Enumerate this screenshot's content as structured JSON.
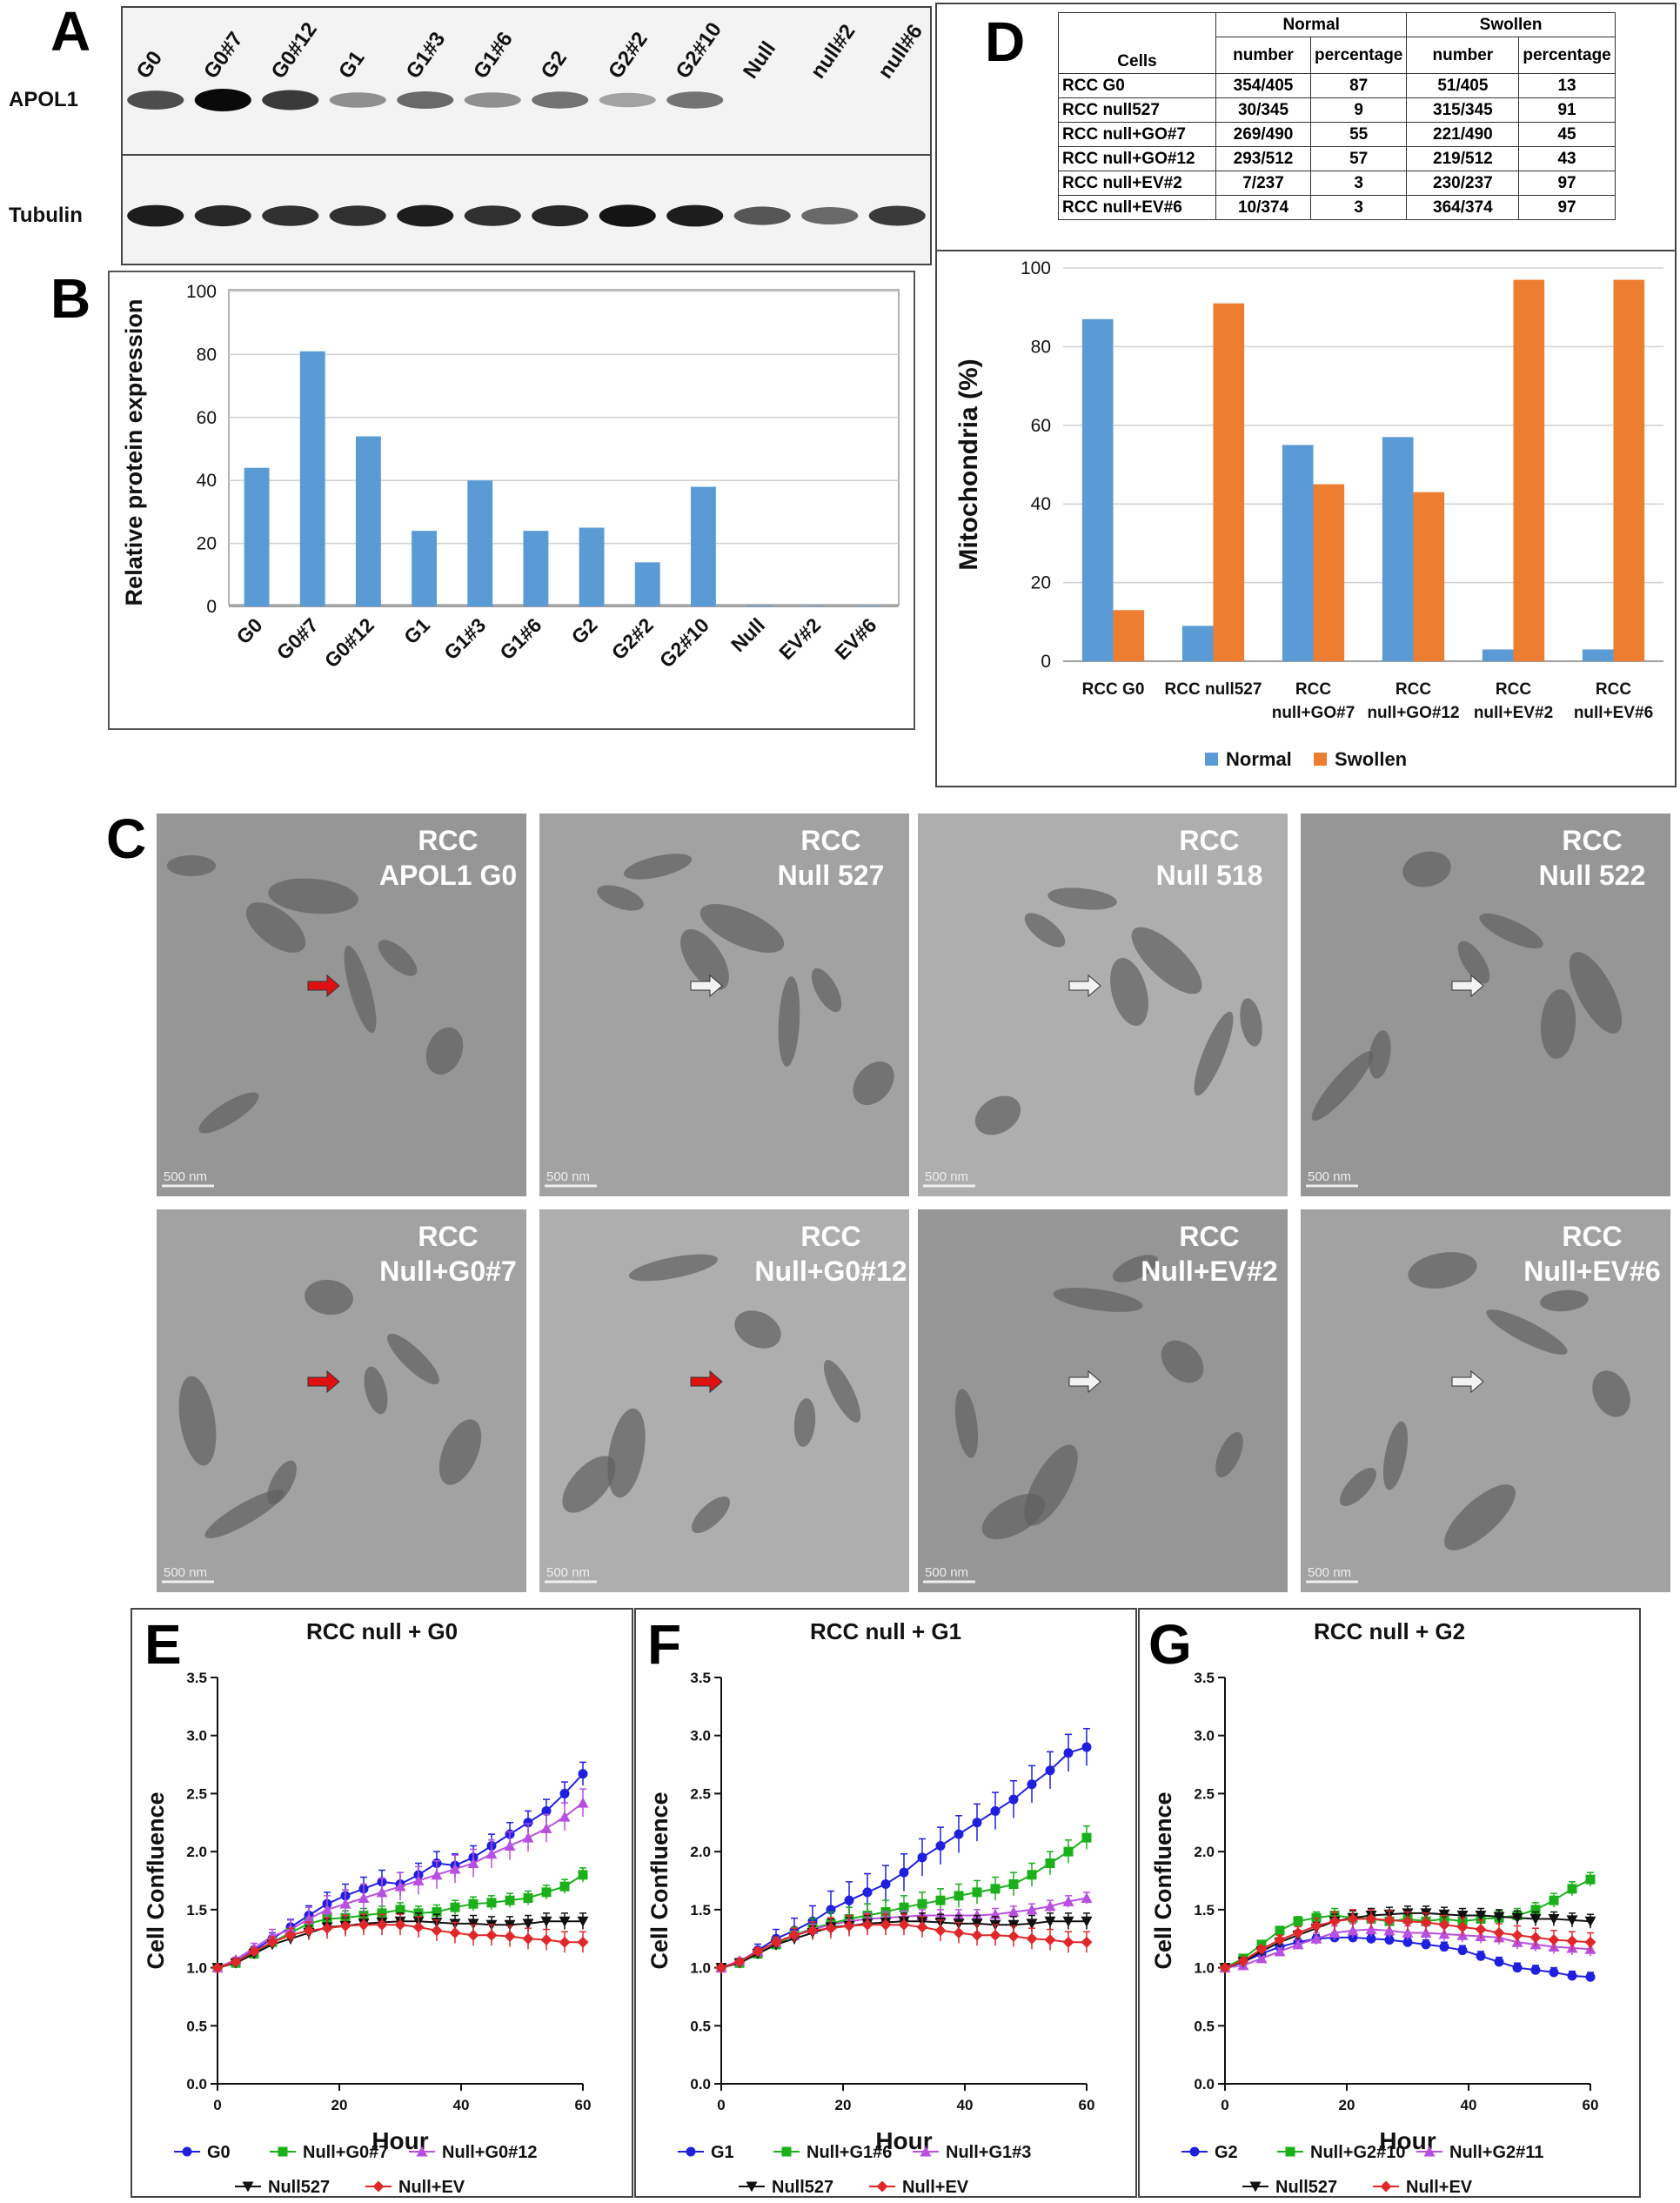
{
  "panels": {
    "a": "A",
    "b": "B",
    "c": "C",
    "d": "D",
    "e": "E",
    "f": "F",
    "g": "G"
  },
  "blot": {
    "lanes": [
      "G0",
      "G0#7",
      "G0#12",
      "G1",
      "G1#3",
      "G1#6",
      "G2",
      "G2#2",
      "G2#10",
      "Null",
      "null#2",
      "null#6"
    ],
    "rows": [
      {
        "name": "APOL1",
        "intensity": [
          0.65,
          1.0,
          0.75,
          0.3,
          0.5,
          0.3,
          0.45,
          0.2,
          0.45,
          0,
          0,
          0
        ]
      },
      {
        "name": "Tubulin",
        "intensity": [
          0.9,
          0.85,
          0.8,
          0.8,
          0.9,
          0.8,
          0.85,
          0.95,
          0.9,
          0.6,
          0.5,
          0.75
        ]
      }
    ]
  },
  "em": {
    "scale_bar": "500 nm",
    "images": [
      {
        "label1": "RCC",
        "label2": "APOL1 G0",
        "arrow": "red"
      },
      {
        "label1": "RCC",
        "label2": "Null 527",
        "arrow": "white"
      },
      {
        "label1": "RCC",
        "label2": "Null 518",
        "arrow": "white"
      },
      {
        "label1": "RCC",
        "label2": "Null 522",
        "arrow": "white"
      },
      {
        "label1": "RCC",
        "label2": "Null+G0#7",
        "arrow": "red"
      },
      {
        "label1": "RCC",
        "label2": "Null+G0#12",
        "arrow": "red"
      },
      {
        "label1": "RCC",
        "label2": "Null+EV#2",
        "arrow": "white"
      },
      {
        "label1": "RCC",
        "label2": "Null+EV#6",
        "arrow": "white"
      }
    ]
  },
  "table": {
    "cells_header": "Cells",
    "group_normal": "Normal",
    "group_swollen": "Swollen",
    "col_number": "number",
    "col_percentage": "percentage",
    "rows": [
      {
        "cells": "RCC G0",
        "n_num": "354/405",
        "n_pct": "87",
        "s_num": "51/405",
        "s_pct": "13"
      },
      {
        "cells": "RCC null527",
        "n_num": "30/345",
        "n_pct": "9",
        "s_num": "315/345",
        "s_pct": "91"
      },
      {
        "cells": "RCC null+GO#7",
        "n_num": "269/490",
        "n_pct": "55",
        "s_num": "221/490",
        "s_pct": "45"
      },
      {
        "cells": "RCC null+GO#12",
        "n_num": "293/512",
        "n_pct": "57",
        "s_num": "219/512",
        "s_pct": "43"
      },
      {
        "cells": "RCC null+EV#2",
        "n_num": "7/237",
        "n_pct": "3",
        "s_num": "230/237",
        "s_pct": "97"
      },
      {
        "cells": "RCC null+EV#6",
        "n_num": "10/374",
        "n_pct": "3",
        "s_num": "364/374",
        "s_pct": "97"
      }
    ]
  },
  "chart_data": [
    {
      "id": "B",
      "type": "bar",
      "title": "",
      "ylabel": "Relative protein expression",
      "xlabel": "",
      "categories": [
        "G0",
        "G0#7",
        "G0#12",
        "G1",
        "G1#3",
        "G1#6",
        "G2",
        "G2#2",
        "G2#10",
        "Null",
        "EV#2",
        "EV#6"
      ],
      "values": [
        44,
        81,
        54,
        24,
        40,
        24,
        25,
        14,
        38,
        0.3,
        0.2,
        0.2
      ],
      "ylim": [
        0,
        100
      ],
      "yticks": [
        0,
        20,
        40,
        60,
        80,
        100
      ],
      "color": "#5b9bd5",
      "grid": true,
      "legend": "none"
    },
    {
      "id": "D",
      "type": "bar",
      "title": "",
      "ylabel": "Mitochondria (%)",
      "xlabel": "",
      "categories": [
        [
          "RCC G0"
        ],
        [
          "RCC null527"
        ],
        [
          "RCC",
          "null+GO#7"
        ],
        [
          "RCC",
          "null+GO#12"
        ],
        [
          "RCC",
          "null+EV#2"
        ],
        [
          "RCC",
          "null+EV#6"
        ]
      ],
      "series": [
        {
          "name": "Normal",
          "color": "#5b9bd5",
          "values": [
            87,
            9,
            55,
            57,
            3,
            3
          ]
        },
        {
          "name": "Swollen",
          "color": "#ed7d31",
          "values": [
            13,
            91,
            45,
            43,
            97,
            97
          ]
        }
      ],
      "ylim": [
        0,
        100
      ],
      "yticks": [
        0,
        20,
        40,
        60,
        80,
        100
      ],
      "grid": true,
      "legend": "bottom"
    },
    {
      "id": "E",
      "type": "line",
      "title": "RCC null + G0",
      "xlabel": "Hour",
      "ylabel": "Cell Confluence",
      "xlim": [
        0,
        60
      ],
      "ylim": [
        0,
        3.5
      ],
      "xticks": [
        0,
        20,
        40,
        60
      ],
      "yticks": [
        0.0,
        0.5,
        1.0,
        1.5,
        2.0,
        2.5,
        3.0,
        3.5
      ],
      "x": [
        0,
        3,
        6,
        9,
        12,
        15,
        18,
        21,
        24,
        27,
        30,
        33,
        36,
        39,
        42,
        45,
        48,
        51,
        54,
        57,
        60
      ],
      "series": [
        {
          "name": "G0",
          "color": "#1f1fe0",
          "marker": "circle",
          "values": [
            1.0,
            1.05,
            1.15,
            1.25,
            1.35,
            1.45,
            1.55,
            1.62,
            1.68,
            1.74,
            1.72,
            1.8,
            1.9,
            1.88,
            1.95,
            2.05,
            2.15,
            2.25,
            2.35,
            2.5,
            2.67
          ],
          "err": 0.1
        },
        {
          "name": "Null+G0#7",
          "color": "#19b019",
          "marker": "square",
          "values": [
            1.0,
            1.04,
            1.12,
            1.22,
            1.3,
            1.38,
            1.42,
            1.43,
            1.45,
            1.47,
            1.5,
            1.47,
            1.48,
            1.52,
            1.55,
            1.56,
            1.58,
            1.6,
            1.65,
            1.7,
            1.8
          ],
          "err": 0.06
        },
        {
          "name": "Null+G0#12",
          "color": "#b94fe0",
          "marker": "triangle-up",
          "values": [
            1.0,
            1.07,
            1.17,
            1.27,
            1.33,
            1.42,
            1.5,
            1.55,
            1.6,
            1.65,
            1.7,
            1.75,
            1.8,
            1.85,
            1.9,
            1.98,
            2.05,
            2.12,
            2.2,
            2.3,
            2.42
          ],
          "err": 0.12
        },
        {
          "name": "Null527",
          "color": "#111111",
          "marker": "triangle-down",
          "values": [
            1.0,
            1.04,
            1.12,
            1.2,
            1.25,
            1.3,
            1.35,
            1.36,
            1.38,
            1.39,
            1.4,
            1.4,
            1.39,
            1.38,
            1.38,
            1.37,
            1.37,
            1.38,
            1.4,
            1.4,
            1.4
          ],
          "err": 0.07
        },
        {
          "name": "Null+EV",
          "color": "#e0282a",
          "marker": "diamond",
          "values": [
            1.0,
            1.05,
            1.14,
            1.22,
            1.28,
            1.32,
            1.34,
            1.36,
            1.37,
            1.37,
            1.37,
            1.35,
            1.32,
            1.3,
            1.28,
            1.28,
            1.27,
            1.25,
            1.24,
            1.22,
            1.22
          ],
          "err": 0.09
        }
      ],
      "legend": "bottom"
    },
    {
      "id": "F",
      "type": "line",
      "title": "RCC null + G1",
      "xlabel": "Hour",
      "ylabel": "Cell Confluence",
      "xlim": [
        0,
        60
      ],
      "ylim": [
        0,
        3.5
      ],
      "xticks": [
        0,
        20,
        40,
        60
      ],
      "yticks": [
        0.0,
        0.5,
        1.0,
        1.5,
        2.0,
        2.5,
        3.0,
        3.5
      ],
      "x": [
        0,
        3,
        6,
        9,
        12,
        15,
        18,
        21,
        24,
        27,
        30,
        33,
        36,
        39,
        42,
        45,
        48,
        51,
        54,
        57,
        60
      ],
      "series": [
        {
          "name": "G1",
          "color": "#1f1fe0",
          "marker": "circle",
          "values": [
            1.0,
            1.05,
            1.15,
            1.25,
            1.32,
            1.4,
            1.5,
            1.58,
            1.65,
            1.72,
            1.82,
            1.95,
            2.05,
            2.15,
            2.25,
            2.35,
            2.45,
            2.58,
            2.7,
            2.85,
            2.9
          ],
          "err": 0.16
        },
        {
          "name": "Null+G1#6",
          "color": "#19b019",
          "marker": "square",
          "values": [
            1.0,
            1.04,
            1.12,
            1.2,
            1.28,
            1.34,
            1.38,
            1.42,
            1.45,
            1.48,
            1.52,
            1.55,
            1.58,
            1.62,
            1.65,
            1.68,
            1.72,
            1.8,
            1.9,
            2.0,
            2.12
          ],
          "err": 0.1
        },
        {
          "name": "Null+G1#3",
          "color": "#b94fe0",
          "marker": "triangle-up",
          "values": [
            1.0,
            1.06,
            1.14,
            1.22,
            1.28,
            1.33,
            1.37,
            1.4,
            1.42,
            1.43,
            1.44,
            1.45,
            1.45,
            1.45,
            1.45,
            1.46,
            1.48,
            1.5,
            1.53,
            1.57,
            1.6
          ],
          "err": 0.05
        },
        {
          "name": "Null527",
          "color": "#111111",
          "marker": "triangle-down",
          "values": [
            1.0,
            1.04,
            1.12,
            1.2,
            1.25,
            1.3,
            1.35,
            1.36,
            1.38,
            1.39,
            1.4,
            1.4,
            1.39,
            1.38,
            1.38,
            1.37,
            1.37,
            1.38,
            1.4,
            1.4,
            1.4
          ],
          "err": 0.07
        },
        {
          "name": "Null+EV",
          "color": "#e0282a",
          "marker": "diamond",
          "values": [
            1.0,
            1.05,
            1.14,
            1.22,
            1.28,
            1.32,
            1.34,
            1.36,
            1.37,
            1.37,
            1.37,
            1.35,
            1.32,
            1.3,
            1.28,
            1.28,
            1.27,
            1.25,
            1.24,
            1.22,
            1.22
          ],
          "err": 0.09
        }
      ],
      "legend": "bottom"
    },
    {
      "id": "G",
      "type": "line",
      "title": "RCC null + G2",
      "xlabel": "Hour",
      "ylabel": "Cell Confluence",
      "xlim": [
        0,
        60
      ],
      "ylim": [
        0,
        3.5
      ],
      "xticks": [
        0,
        20,
        40,
        60
      ],
      "yticks": [
        0.0,
        0.5,
        1.0,
        1.5,
        2.0,
        2.5,
        3.0,
        3.5
      ],
      "x": [
        0,
        3,
        6,
        9,
        12,
        15,
        18,
        21,
        24,
        27,
        30,
        33,
        36,
        39,
        42,
        45,
        48,
        51,
        54,
        57,
        60
      ],
      "series": [
        {
          "name": "G2",
          "color": "#1f1fe0",
          "marker": "circle",
          "values": [
            1.0,
            1.05,
            1.12,
            1.18,
            1.22,
            1.25,
            1.26,
            1.26,
            1.25,
            1.24,
            1.22,
            1.2,
            1.18,
            1.15,
            1.1,
            1.05,
            1.0,
            0.98,
            0.96,
            0.93,
            0.92
          ],
          "err": 0.04
        },
        {
          "name": "Null+G2#10",
          "color": "#19b019",
          "marker": "square",
          "values": [
            1.0,
            1.08,
            1.2,
            1.32,
            1.4,
            1.43,
            1.45,
            1.43,
            1.42,
            1.4,
            1.42,
            1.4,
            1.42,
            1.4,
            1.42,
            1.43,
            1.45,
            1.5,
            1.58,
            1.68,
            1.76
          ],
          "err": 0.06
        },
        {
          "name": "Null+G2#11",
          "color": "#b94fe0",
          "marker": "triangle-up",
          "values": [
            1.0,
            1.02,
            1.08,
            1.14,
            1.2,
            1.25,
            1.3,
            1.32,
            1.33,
            1.32,
            1.3,
            1.3,
            1.29,
            1.28,
            1.27,
            1.26,
            1.22,
            1.2,
            1.18,
            1.17,
            1.16
          ],
          "err": 0.06
        },
        {
          "name": "Null527",
          "color": "#111111",
          "marker": "triangle-down",
          "values": [
            1.0,
            1.05,
            1.14,
            1.22,
            1.28,
            1.34,
            1.4,
            1.43,
            1.45,
            1.46,
            1.47,
            1.47,
            1.46,
            1.45,
            1.45,
            1.44,
            1.43,
            1.42,
            1.42,
            1.41,
            1.4
          ],
          "err": 0.06
        },
        {
          "name": "Null+EV",
          "color": "#e0282a",
          "marker": "diamond",
          "values": [
            1.0,
            1.06,
            1.16,
            1.24,
            1.3,
            1.36,
            1.4,
            1.42,
            1.42,
            1.41,
            1.4,
            1.39,
            1.37,
            1.35,
            1.33,
            1.3,
            1.28,
            1.26,
            1.24,
            1.23,
            1.22
          ],
          "err": 0.08
        }
      ],
      "legend": "bottom"
    }
  ]
}
